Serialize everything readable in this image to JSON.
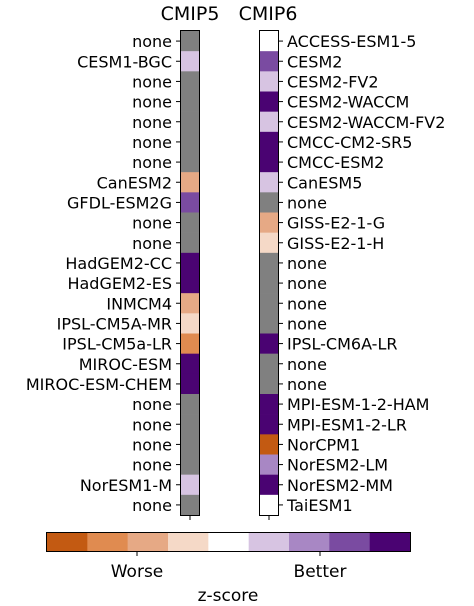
{
  "chart_data": {
    "type": "heatmap",
    "xlabel": "z-score",
    "columns": [
      {
        "title": "CMIP5",
        "rows": [
          {
            "label": "none",
            "category": "none"
          },
          {
            "label": "CESM1-BGC",
            "category": "better1"
          },
          {
            "label": "none",
            "category": "none"
          },
          {
            "label": "none",
            "category": "none"
          },
          {
            "label": "none",
            "category": "none"
          },
          {
            "label": "none",
            "category": "none"
          },
          {
            "label": "none",
            "category": "none"
          },
          {
            "label": "CanESM2",
            "category": "worse2"
          },
          {
            "label": "GFDL-ESM2G",
            "category": "better3"
          },
          {
            "label": "none",
            "category": "none"
          },
          {
            "label": "none",
            "category": "none"
          },
          {
            "label": "HadGEM2-CC",
            "category": "better4"
          },
          {
            "label": "HadGEM2-ES",
            "category": "better4"
          },
          {
            "label": "INMCM4",
            "category": "worse2"
          },
          {
            "label": "IPSL-CM5A-MR",
            "category": "worse1"
          },
          {
            "label": "IPSL-CM5a-LR",
            "category": "worse3"
          },
          {
            "label": "MIROC-ESM",
            "category": "better4"
          },
          {
            "label": "MIROC-ESM-CHEM",
            "category": "better4"
          },
          {
            "label": "none",
            "category": "none"
          },
          {
            "label": "none",
            "category": "none"
          },
          {
            "label": "none",
            "category": "none"
          },
          {
            "label": "none",
            "category": "none"
          },
          {
            "label": "NorESM1-M",
            "category": "better1"
          },
          {
            "label": "none",
            "category": "none"
          }
        ]
      },
      {
        "title": "CMIP6",
        "rows": [
          {
            "label": "ACCESS-ESM1-5",
            "category": "neutral"
          },
          {
            "label": "CESM2",
            "category": "better3"
          },
          {
            "label": "CESM2-FV2",
            "category": "better1"
          },
          {
            "label": "CESM2-WACCM",
            "category": "better4"
          },
          {
            "label": "CESM2-WACCM-FV2",
            "category": "better1"
          },
          {
            "label": "CMCC-CM2-SR5",
            "category": "better4"
          },
          {
            "label": "CMCC-ESM2",
            "category": "better4"
          },
          {
            "label": "CanESM5",
            "category": "better1"
          },
          {
            "label": "none",
            "category": "none"
          },
          {
            "label": "GISS-E2-1-G",
            "category": "worse2"
          },
          {
            "label": "GISS-E2-1-H",
            "category": "worse1"
          },
          {
            "label": "none",
            "category": "none"
          },
          {
            "label": "none",
            "category": "none"
          },
          {
            "label": "none",
            "category": "none"
          },
          {
            "label": "none",
            "category": "none"
          },
          {
            "label": "IPSL-CM6A-LR",
            "category": "better4"
          },
          {
            "label": "none",
            "category": "none"
          },
          {
            "label": "none",
            "category": "none"
          },
          {
            "label": "MPI-ESM-1-2-HAM",
            "category": "better4"
          },
          {
            "label": "MPI-ESM1-2-LR",
            "category": "better4"
          },
          {
            "label": "NorCPM1",
            "category": "worse4"
          },
          {
            "label": "NorESM2-LM",
            "category": "better2"
          },
          {
            "label": "NorESM2-MM",
            "category": "better4"
          },
          {
            "label": "TaiESM1",
            "category": "neutral"
          }
        ]
      }
    ],
    "colorbar": {
      "categories": [
        "worse4",
        "worse3",
        "worse2",
        "worse1",
        "neutral",
        "better1",
        "better2",
        "better3",
        "better4"
      ],
      "colors": [
        "#c35a12",
        "#e08b50",
        "#e6a985",
        "#f5d9c7",
        "#ffffff",
        "#d7c4e2",
        "#a887c4",
        "#7a4ba1",
        "#4a0372"
      ],
      "labels": [
        "Worse",
        "Better"
      ]
    },
    "colors": {
      "none": "#808080",
      "neutral": "#ffffff",
      "worse4": "#c35a12",
      "worse3": "#e08b50",
      "worse2": "#e6a985",
      "worse1": "#f5d9c7",
      "better1": "#d7c4e2",
      "better2": "#a887c4",
      "better3": "#7a4ba1",
      "better4": "#4a0372"
    }
  }
}
